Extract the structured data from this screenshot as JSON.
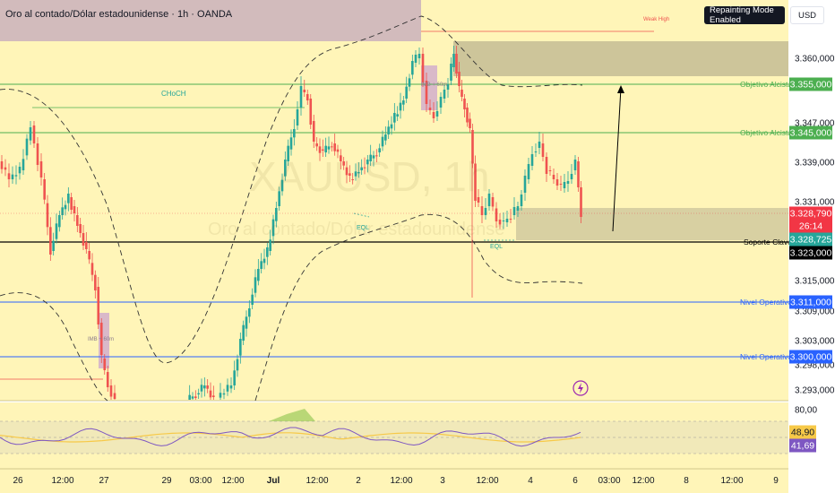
{
  "title": "Oro al contado/Dólar estadounidense · 1h · OANDA",
  "watermark": {
    "symbol": "XAUUSD, 1h",
    "name": "Oro al contado/Dólar estadounidense"
  },
  "top_right": {
    "mode_label": "Repainting Mode Enabled",
    "currency": "USD"
  },
  "annotations": {
    "weak_high": "Weak High",
    "choch": "CHoCH",
    "eql_1": "EQL",
    "eql_2": "EQL",
    "ob_1": "IMB + 60m",
    "ob_2": "IMB + 60m"
  },
  "level_labels": [
    {
      "text": "Objetivo Alcista",
      "price": "3.355,000",
      "color": "#4caf50"
    },
    {
      "text": "Objetivo Alcista",
      "price": "3.345,000",
      "color": "#4caf50"
    },
    {
      "text": "Soporte Clave",
      "price": "3.323,000",
      "color": "#000000"
    },
    {
      "text": "Nivel Operativo",
      "price": "3.311,000",
      "color": "#2962ff"
    },
    {
      "text": "Nivel Operativo",
      "price": "3.300,000",
      "color": "#2962ff"
    }
  ],
  "price_axis": {
    "ticks": [
      "3.360,000",
      "3.347,000",
      "3.339,000",
      "3.331,000",
      "3.315,000",
      "3.309,000",
      "3.303,000",
      "3.298,000",
      "3.293,000"
    ],
    "current_price": "3.328,790",
    "countdown": "26:14",
    "last_close": "3.328,725"
  },
  "oscillator": {
    "upper": "80,00",
    "value_a": "48,90",
    "value_b": "41,69"
  },
  "time_axis": [
    "26",
    "12:00",
    "27",
    "29",
    "03:00",
    "12:00",
    "Jul",
    "12:00",
    "2",
    "12:00",
    "3",
    "12:00",
    "4",
    "6",
    "03:00",
    "12:00",
    "8",
    "12:00",
    "9"
  ],
  "colors": {
    "background": "#fff5b8",
    "up": "#26a69a",
    "down": "#ef5350",
    "target": "#4caf50",
    "operative": "#2962ff",
    "support": "#000000",
    "current": "#f23645",
    "osc_line": "#7e57c2",
    "osc_signal": "#f7c948"
  },
  "icons": {
    "lightning": "lightning-icon"
  }
}
